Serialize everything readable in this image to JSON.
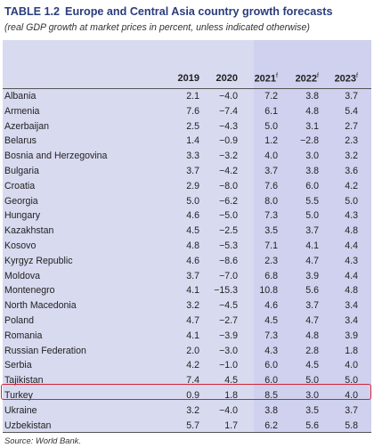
{
  "title": {
    "number": "TABLE 1.2",
    "text": "Europe and Central Asia country growth forecasts"
  },
  "subtitle": "(real GDP growth at market prices in percent, unless indicated otherwise)",
  "header": {
    "years": [
      "2019",
      "2020",
      "2021",
      "2022",
      "2023"
    ],
    "forecast_mark": "f"
  },
  "rows": [
    {
      "name": "Albania",
      "values": [
        "2.1",
        "−4.0",
        "7.2",
        "3.8",
        "3.7"
      ]
    },
    {
      "name": "Armenia",
      "values": [
        "7.6",
        "−7.4",
        "6.1",
        "4.8",
        "5.4"
      ]
    },
    {
      "name": "Azerbaijan",
      "values": [
        "2.5",
        "−4.3",
        "5.0",
        "3.1",
        "2.7"
      ]
    },
    {
      "name": "Belarus",
      "values": [
        "1.4",
        "−0.9",
        "1.2",
        "−2.8",
        "2.3"
      ]
    },
    {
      "name": "Bosnia and Herzegovina",
      "values": [
        "3.3",
        "−3.2",
        "4.0",
        "3.0",
        "3.2"
      ]
    },
    {
      "name": "Bulgaria",
      "values": [
        "3.7",
        "−4.2",
        "3.7",
        "3.8",
        "3.6"
      ]
    },
    {
      "name": "Croatia",
      "values": [
        "2.9",
        "−8.0",
        "7.6",
        "6.0",
        "4.2"
      ]
    },
    {
      "name": "Georgia",
      "values": [
        "5.0",
        "−6.2",
        "8.0",
        "5.5",
        "5.0"
      ]
    },
    {
      "name": "Hungary",
      "values": [
        "4.6",
        "−5.0",
        "7.3",
        "5.0",
        "4.3"
      ]
    },
    {
      "name": "Kazakhstan",
      "values": [
        "4.5",
        "−2.5",
        "3.5",
        "3.7",
        "4.8"
      ]
    },
    {
      "name": "Kosovo",
      "values": [
        "4.8",
        "−5.3",
        "7.1",
        "4.1",
        "4.4"
      ]
    },
    {
      "name": "Kyrgyz Republic",
      "values": [
        "4.6",
        "−8.6",
        "2.3",
        "4.7",
        "4.3"
      ]
    },
    {
      "name": "Moldova",
      "values": [
        "3.7",
        "−7.0",
        "6.8",
        "3.9",
        "4.4"
      ]
    },
    {
      "name": "Montenegro",
      "values": [
        "4.1",
        "−15.3",
        "10.8",
        "5.6",
        "4.8"
      ]
    },
    {
      "name": "North Macedonia",
      "values": [
        "3.2",
        "−4.5",
        "4.6",
        "3.7",
        "3.4"
      ]
    },
    {
      "name": "Poland",
      "values": [
        "4.7",
        "−2.7",
        "4.5",
        "4.7",
        "3.4"
      ]
    },
    {
      "name": "Romania",
      "values": [
        "4.1",
        "−3.9",
        "7.3",
        "4.8",
        "3.9"
      ]
    },
    {
      "name": "Russian Federation",
      "values": [
        "2.0",
        "−3.0",
        "4.3",
        "2.8",
        "1.8"
      ]
    },
    {
      "name": "Serbia",
      "values": [
        "4.2",
        "−1.0",
        "6.0",
        "4.5",
        "4.0"
      ]
    },
    {
      "name": "Tajikistan",
      "values": [
        "7.4",
        "4.5",
        "6.0",
        "5.0",
        "5.0"
      ]
    },
    {
      "name": "Turkey",
      "values": [
        "0.9",
        "1.8",
        "8.5",
        "3.0",
        "4.0"
      ]
    },
    {
      "name": "Ukraine",
      "values": [
        "3.2",
        "−4.0",
        "3.8",
        "3.5",
        "3.7"
      ]
    },
    {
      "name": "Uzbekistan",
      "values": [
        "5.7",
        "1.7",
        "6.2",
        "5.6",
        "5.8"
      ]
    }
  ],
  "highlight": {
    "row": "Turkey",
    "color": "#d0243a"
  },
  "source": "Source: World Bank."
}
